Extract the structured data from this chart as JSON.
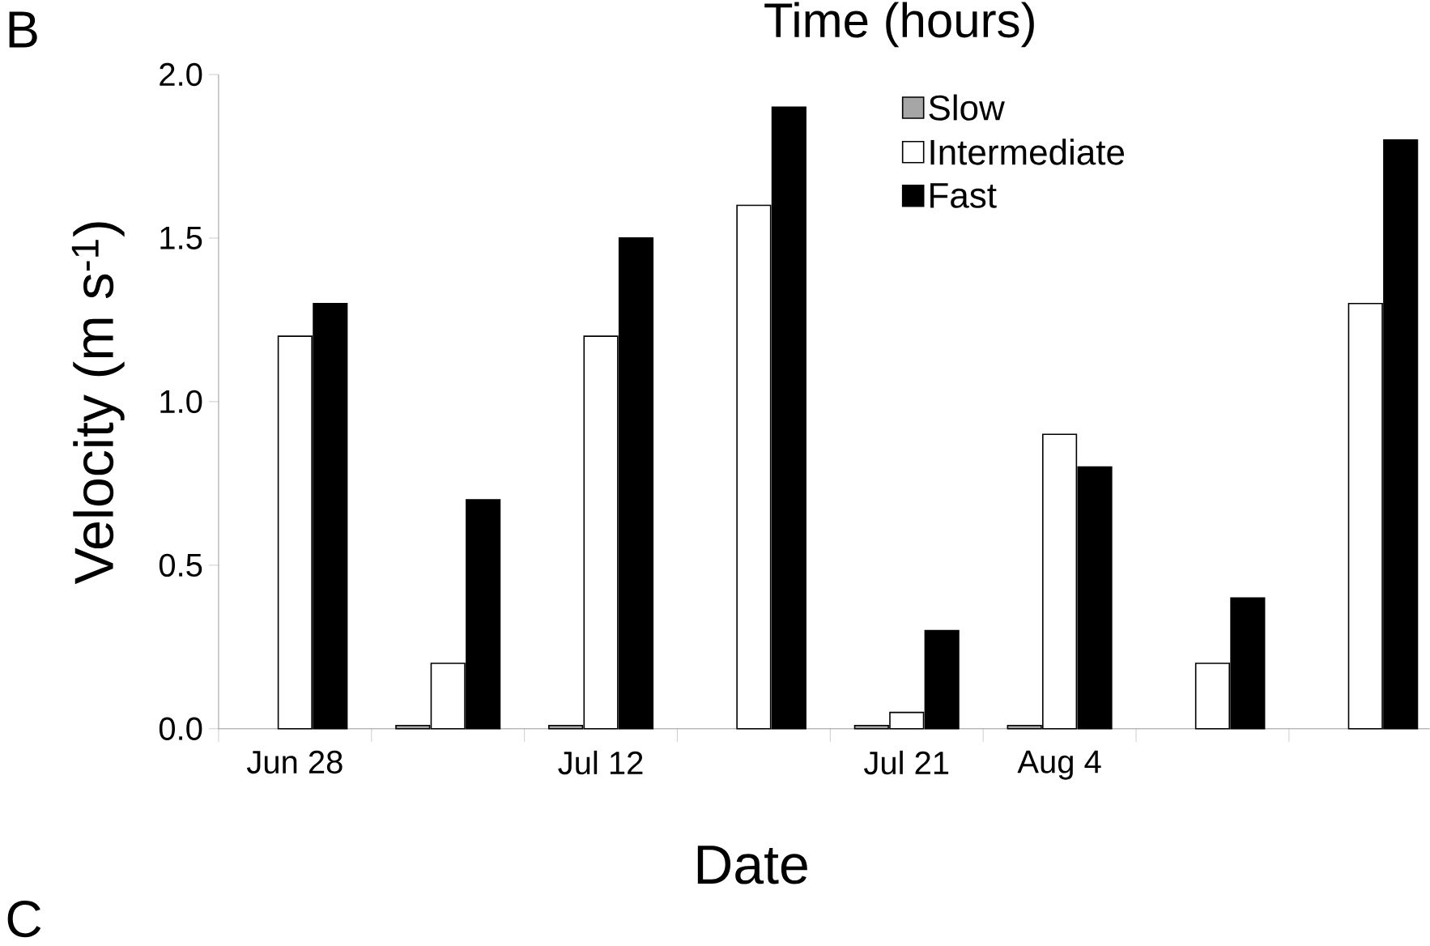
{
  "chart_data": {
    "type": "bar",
    "xlabel": "Date",
    "ylabel": "Velocity (m s$^{-1}$)",
    "categories": [
      "Jun 28",
      null,
      "Jul 12",
      null,
      "Jul 21",
      "Aug 4",
      null,
      null
    ],
    "series": [
      {
        "name": "Slow",
        "color": "#a6a6a6",
        "values": [
          null,
          0.01,
          0.01,
          null,
          0.01,
          0.01,
          null,
          null
        ]
      },
      {
        "name": "Intermediate",
        "color": "#ffffff",
        "values": [
          1.2,
          0.2,
          1.2,
          1.6,
          0.05,
          0.9,
          0.2,
          1.3
        ]
      },
      {
        "name": "Fast",
        "color": "#000000",
        "values": [
          1.3,
          0.7,
          1.5,
          1.9,
          0.3,
          0.8,
          0.4,
          1.8
        ]
      }
    ],
    "ylim": [
      0,
      2.0
    ],
    "yticks": [
      {
        "value": 0,
        "label": "0.0"
      },
      {
        "value": 0.5,
        "label": "0.5"
      },
      {
        "value": 1.0,
        "label": "1.0"
      },
      {
        "value": 1.5,
        "label": "1.5"
      },
      {
        "value": 2.0,
        "label": "2.0"
      }
    ],
    "legend": "top right",
    "grid": false,
    "annotations": [
      "Time (hours)",
      "B",
      "C"
    ]
  }
}
